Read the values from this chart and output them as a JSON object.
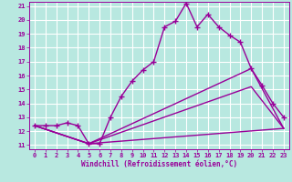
{
  "xlabel": "Windchill (Refroidissement éolien,°C)",
  "xlim": [
    -0.5,
    23.5
  ],
  "ylim": [
    10.7,
    21.3
  ],
  "yticks": [
    11,
    12,
    13,
    14,
    15,
    16,
    17,
    18,
    19,
    20,
    21
  ],
  "xticks": [
    0,
    1,
    2,
    3,
    4,
    5,
    6,
    7,
    8,
    9,
    10,
    11,
    12,
    13,
    14,
    15,
    16,
    17,
    18,
    19,
    20,
    21,
    22,
    23
  ],
  "bg_color": "#b8e8e0",
  "grid_color": "#ffffff",
  "line_color": "#990099",
  "lines": [
    {
      "x": [
        0,
        1,
        2,
        3,
        4,
        5,
        6,
        7,
        8,
        9,
        10,
        11,
        12,
        13,
        14,
        15,
        16,
        17,
        18,
        19,
        20,
        21,
        22,
        23
      ],
      "y": [
        12.4,
        12.4,
        12.4,
        12.6,
        12.4,
        11.1,
        11.1,
        13.0,
        14.5,
        15.6,
        16.4,
        17.0,
        19.5,
        19.9,
        21.2,
        19.5,
        20.4,
        19.5,
        18.9,
        18.4,
        16.5,
        15.3,
        14.0,
        13.0
      ],
      "marker": "+",
      "markersize": 4,
      "linewidth": 1.0
    },
    {
      "x": [
        0,
        5,
        20,
        23
      ],
      "y": [
        12.4,
        11.1,
        16.5,
        12.2
      ],
      "marker": null,
      "linewidth": 1.0
    },
    {
      "x": [
        0,
        5,
        20,
        23
      ],
      "y": [
        12.4,
        11.1,
        15.2,
        12.2
      ],
      "marker": null,
      "linewidth": 1.0
    },
    {
      "x": [
        0,
        5,
        23
      ],
      "y": [
        12.4,
        11.1,
        12.2
      ],
      "marker": null,
      "linewidth": 1.0
    }
  ]
}
